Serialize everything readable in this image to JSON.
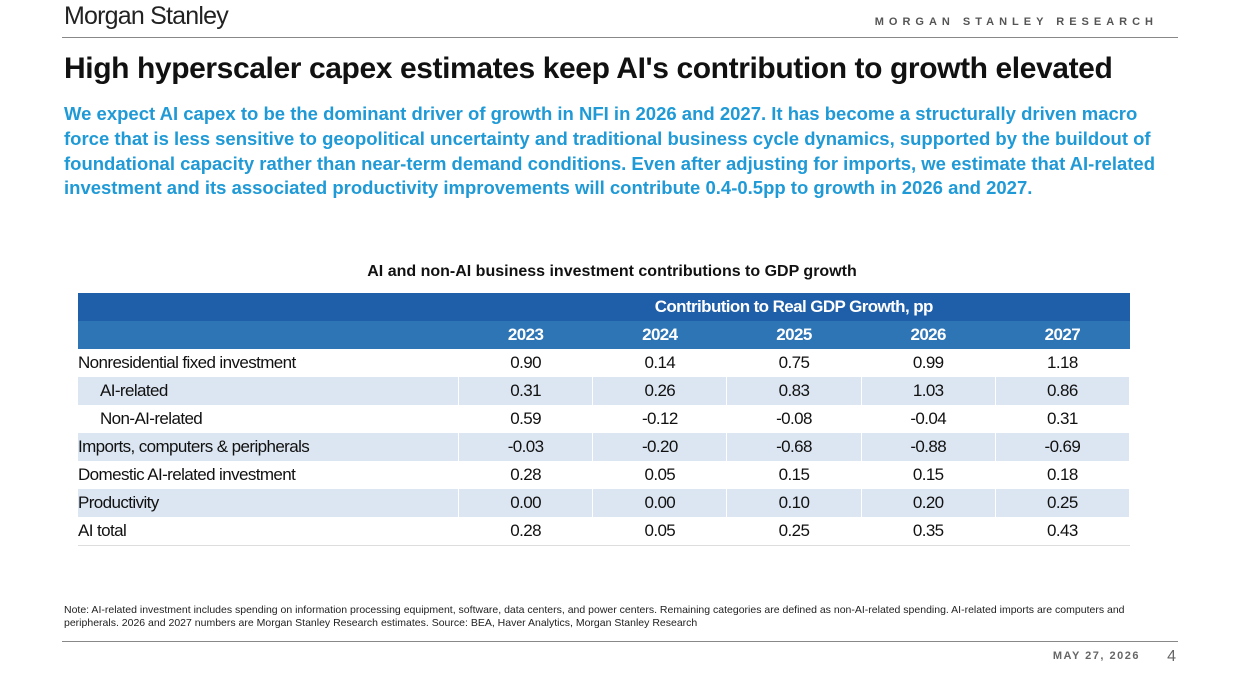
{
  "header": {
    "logo": "Morgan Stanley",
    "tagline": "MORGAN STANLEY RESEARCH"
  },
  "title": "High hyperscaler capex estimates keep AI's contribution to growth elevated",
  "subtitle": "We expect AI capex to be the dominant driver of growth in NFI in 2026 and 2027. It has become a structurally driven macro force that is less sensitive to geopolitical uncertainty and traditional business cycle dynamics, supported by the buildout of foundational capacity rather than near-term demand conditions. Even after adjusting for imports, we estimate that AI-related investment and its associated productivity improvements will contribute 0.4-0.5pp to growth in  2026 and 2027.",
  "table_title": "AI and non-AI business investment contributions to GDP growth",
  "table": {
    "header": "Contribution to Real GDP Growth, pp",
    "columns": [
      "2023",
      "2024",
      "2025",
      "2026",
      "2027"
    ],
    "rows": [
      {
        "label": "Nonresidential fixed investment",
        "values": [
          "0.90",
          "0.14",
          "0.75",
          "0.99",
          "1.18"
        ]
      },
      {
        "label": "AI-related",
        "values": [
          "0.31",
          "0.26",
          "0.83",
          "1.03",
          "0.86"
        ]
      },
      {
        "label": "Non-AI-related",
        "values": [
          "0.59",
          "-0.12",
          "-0.08",
          "-0.04",
          "0.31"
        ]
      },
      {
        "label": "Imports, computers & peripherals",
        "values": [
          "-0.03",
          "-0.20",
          "-0.68",
          "-0.88",
          "-0.69"
        ]
      },
      {
        "label": "Domestic AI-related investment",
        "values": [
          "0.28",
          "0.05",
          "0.15",
          "0.15",
          "0.18"
        ]
      },
      {
        "label": "Productivity",
        "values": [
          "0.00",
          "0.00",
          "0.10",
          "0.20",
          "0.25"
        ]
      },
      {
        "label": "AI total",
        "values": [
          "0.28",
          "0.05",
          "0.25",
          "0.35",
          "0.43"
        ]
      }
    ]
  },
  "note": "Note: AI-related investment includes spending on information processing equipment, software, data centers, and power centers. Remaining categories are defined as non-AI-related spending. AI-related imports are computers and peripherals. 2026 and 2027 numbers are Morgan Stanley Research estimates. Source: BEA, Haver Analytics, Morgan Stanley Research",
  "footer": {
    "date": "MAY 27, 2026",
    "page": "4"
  }
}
